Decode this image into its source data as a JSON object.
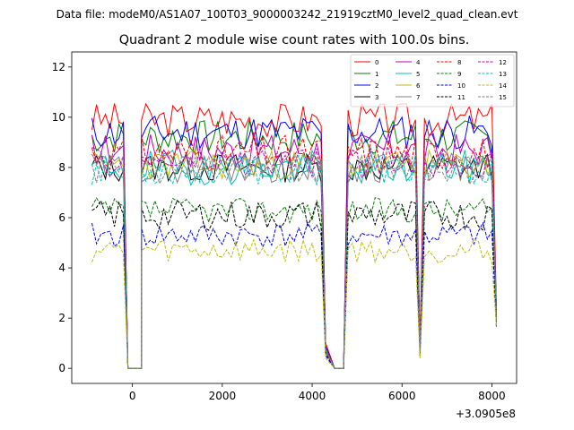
{
  "figure": {
    "suptitle": "Data file: modeM0/AS1A07_100T03_9000003242_21919cztM0_level2_quad_clean.evt",
    "offset_label": "+3.0905e8"
  },
  "chart_data": {
    "type": "line",
    "title": "Quadrant 2 module wise count rates with 100.0s bins.",
    "xlabel": "",
    "ylabel": "",
    "xlim": [
      -1350,
      8550
    ],
    "ylim": [
      -0.6,
      12.6
    ],
    "x_offset": 309050000,
    "xticks": [
      0,
      2000,
      4000,
      6000,
      8000
    ],
    "xtick_labels": [
      "0",
      "2000",
      "4000",
      "6000",
      "8000"
    ],
    "yticks": [
      0,
      2,
      4,
      6,
      8,
      10,
      12
    ],
    "ytick_labels": [
      "0",
      "2",
      "4",
      "6",
      "8",
      "10",
      "12"
    ],
    "grid": false,
    "legend_placement": "top-right",
    "legend_columns": 4,
    "segments": [
      {
        "start": -900,
        "end": -200,
        "profile": "plateau"
      },
      {
        "start": -100,
        "end": 200,
        "profile": "zero"
      },
      {
        "start": 200,
        "end": 4200,
        "profile": "plateau"
      },
      {
        "start": 4300,
        "end": 4300,
        "profile": "dip"
      },
      {
        "start": 4500,
        "end": 4700,
        "profile": "zero"
      },
      {
        "start": 4800,
        "end": 6300,
        "profile": "plateau"
      },
      {
        "start": 6400,
        "end": 6400,
        "profile": "dip"
      },
      {
        "start": 6500,
        "end": 8000,
        "profile": "plateau"
      },
      {
        "start": 8100,
        "end": 8100,
        "profile": "tail"
      }
    ],
    "series": [
      {
        "name": "0",
        "color": "#ff0000",
        "linestyle": "solid",
        "level": 9.9,
        "jitter": 0.35,
        "dip": 1.0,
        "tail": 2.4,
        "seed": 3
      },
      {
        "name": "1",
        "color": "#008000",
        "linestyle": "solid",
        "level": 9.2,
        "jitter": 0.35,
        "dip": 0.8,
        "tail": 2.2,
        "seed": 7
      },
      {
        "name": "2",
        "color": "#0000ff",
        "linestyle": "solid",
        "level": 9.4,
        "jitter": 0.35,
        "dip": 0.9,
        "tail": 2.3,
        "seed": 11
      },
      {
        "name": "3",
        "color": "#000000",
        "linestyle": "solid",
        "level": 8.0,
        "jitter": 0.3,
        "dip": 0.7,
        "tail": 2.0,
        "seed": 13
      },
      {
        "name": "4",
        "color": "#bf00bf",
        "linestyle": "solid",
        "level": 8.7,
        "jitter": 0.35,
        "dip": 0.8,
        "tail": 2.1,
        "seed": 17
      },
      {
        "name": "5",
        "color": "#00bfbf",
        "linestyle": "solid",
        "level": 8.0,
        "jitter": 0.35,
        "dip": 0.8,
        "tail": 2.0,
        "seed": 19
      },
      {
        "name": "6",
        "color": "#bfbf00",
        "linestyle": "solid",
        "level": 8.1,
        "jitter": 0.3,
        "dip": 0.7,
        "tail": 2.0,
        "seed": 23
      },
      {
        "name": "7",
        "color": "#808080",
        "linestyle": "solid",
        "level": 8.0,
        "jitter": 0.3,
        "dip": 0.7,
        "tail": 2.0,
        "seed": 29
      },
      {
        "name": "8",
        "color": "#ff0000",
        "linestyle": "dashed",
        "level": 8.6,
        "jitter": 0.35,
        "dip": 0.8,
        "tail": 2.1,
        "seed": 31
      },
      {
        "name": "9",
        "color": "#008000",
        "linestyle": "dashed",
        "level": 6.3,
        "jitter": 0.25,
        "dip": 0.6,
        "tail": 1.7,
        "seed": 37
      },
      {
        "name": "10",
        "color": "#0000ff",
        "linestyle": "dashed",
        "level": 5.3,
        "jitter": 0.25,
        "dip": 0.5,
        "tail": 1.6,
        "seed": 41
      },
      {
        "name": "11",
        "color": "#000000",
        "linestyle": "dashed",
        "level": 6.1,
        "jitter": 0.3,
        "dip": 0.6,
        "tail": 1.8,
        "seed": 43
      },
      {
        "name": "12",
        "color": "#bf00bf",
        "linestyle": "dashed",
        "level": 8.2,
        "jitter": 0.3,
        "dip": 0.7,
        "tail": 2.0,
        "seed": 47
      },
      {
        "name": "13",
        "color": "#00bfbf",
        "linestyle": "dashed",
        "level": 7.9,
        "jitter": 0.3,
        "dip": 0.7,
        "tail": 2.0,
        "seed": 53
      },
      {
        "name": "14",
        "color": "#bfbf00",
        "linestyle": "dashed",
        "level": 4.7,
        "jitter": 0.25,
        "dip": 0.4,
        "tail": 1.7,
        "seed": 59
      },
      {
        "name": "15",
        "color": "#808080",
        "linestyle": "dashed",
        "level": 7.9,
        "jitter": 0.3,
        "dip": 0.7,
        "tail": 1.9,
        "seed": 61
      }
    ]
  }
}
